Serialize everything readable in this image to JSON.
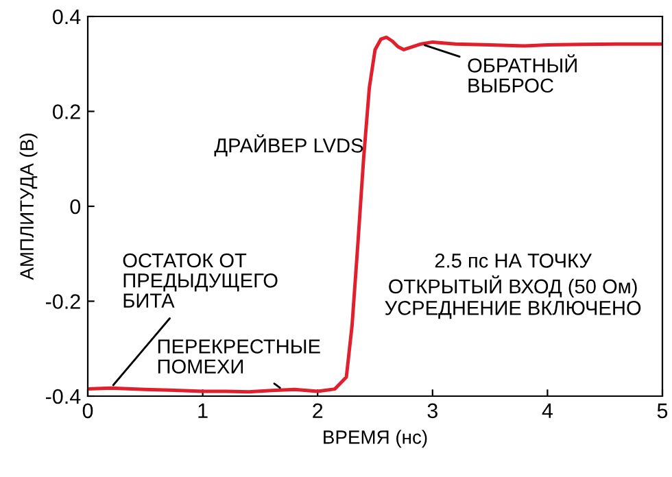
{
  "chart_data": {
    "type": "line",
    "xlabel": "ВРЕМЯ (нс)",
    "ylabel": "АМПЛИТУДА (В)",
    "xlim": [
      0,
      5
    ],
    "xticks": [
      0,
      1,
      2,
      3,
      4,
      5
    ],
    "ylim": [
      -0.4,
      0.4
    ],
    "yticks": [
      -0.4,
      -0.2,
      0,
      0.2,
      0.4
    ],
    "grid": false,
    "legend": false,
    "series": [
      {
        "color": "#e0202c",
        "x": [
          0,
          0.2,
          0.5,
          0.8,
          1.0,
          1.2,
          1.4,
          1.6,
          1.8,
          2.0,
          2.15,
          2.25,
          2.3,
          2.35,
          2.4,
          2.45,
          2.5,
          2.55,
          2.6,
          2.65,
          2.7,
          2.75,
          2.8,
          2.9,
          3.0,
          3.2,
          3.5,
          3.8,
          4.0,
          4.3,
          4.6,
          5.0
        ],
        "values": [
          -0.385,
          -0.383,
          -0.386,
          -0.388,
          -0.39,
          -0.39,
          -0.391,
          -0.388,
          -0.386,
          -0.39,
          -0.385,
          -0.36,
          -0.25,
          -0.08,
          0.1,
          0.25,
          0.33,
          0.352,
          0.356,
          0.348,
          0.336,
          0.33,
          0.334,
          0.342,
          0.346,
          0.342,
          0.34,
          0.338,
          0.34,
          0.341,
          0.342,
          0.342
        ]
      }
    ],
    "annotations": [
      {
        "text": "ОСТАТОК ОТ\nПРЕДЫДУЩЕГО\nБИТА",
        "x": 0.2,
        "y": -0.383
      },
      {
        "text": "ПЕРЕКРЕСТНЫЕ\nПОМЕХИ",
        "x": 1.7,
        "y": -0.387
      },
      {
        "text": "ОБРАТНЫЙ\nВЫБРОС",
        "x": 2.9,
        "y": 0.342
      },
      "ДРАЙВЕР LVDS",
      "2.5 пс НА ТОЧКУ\nОТКРЫТЫЙ ВХОД (50 Ом)\nУСРЕДНЕНИЕ ВКЛЮЧЕНО"
    ]
  }
}
